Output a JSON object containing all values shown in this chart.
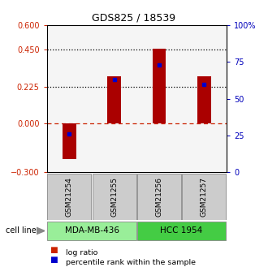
{
  "title": "GDS825 / 18539",
  "samples": [
    "GSM21254",
    "GSM21255",
    "GSM21256",
    "GSM21257"
  ],
  "log_ratios": [
    -0.22,
    0.285,
    0.455,
    0.285
  ],
  "percentile_ranks": [
    26,
    63,
    73,
    60
  ],
  "cell_lines": [
    {
      "label": "MDA-MB-436",
      "samples": [
        0,
        1
      ],
      "color": "#99ee99"
    },
    {
      "label": "HCC 1954",
      "samples": [
        2,
        3
      ],
      "color": "#44cc44"
    }
  ],
  "ylim_left": [
    -0.3,
    0.6
  ],
  "ylim_right": [
    0,
    100
  ],
  "yticks_left": [
    -0.3,
    0.0,
    0.225,
    0.45,
    0.6
  ],
  "yticks_right": [
    0,
    25,
    50,
    75,
    100
  ],
  "hlines_dotted": [
    0.225,
    0.45
  ],
  "bar_color": "#aa0000",
  "dot_color": "#0000cc",
  "background_color": "#ffffff",
  "bar_width": 0.3,
  "left_tick_color": "#cc2200",
  "right_tick_color": "#0000bb",
  "legend_log_color": "#cc2200",
  "legend_pct_color": "#0000cc"
}
